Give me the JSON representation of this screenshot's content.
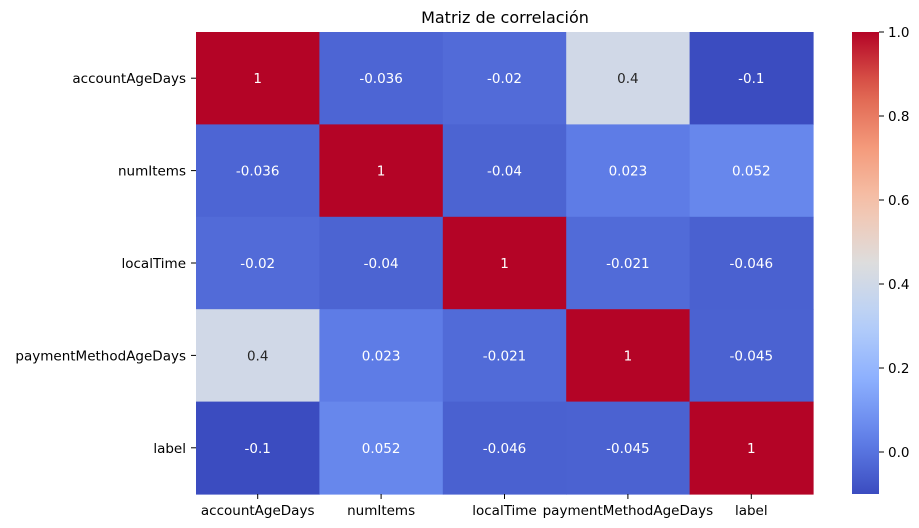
{
  "chart_data": {
    "type": "heatmap",
    "title": "Matriz de correlación",
    "row_labels": [
      "accountAgeDays",
      "numItems",
      "localTime",
      "paymentMethodAgeDays",
      "label"
    ],
    "col_labels": [
      "accountAgeDays",
      "numItems",
      "localTime",
      "paymentMethodAgeDays",
      "label"
    ],
    "values": [
      [
        1,
        -0.036,
        -0.02,
        0.4,
        -0.1
      ],
      [
        -0.036,
        1,
        -0.04,
        0.023,
        0.052
      ],
      [
        -0.02,
        -0.04,
        1,
        -0.021,
        -0.046
      ],
      [
        0.4,
        0.023,
        -0.021,
        1,
        -0.045
      ],
      [
        -0.1,
        0.052,
        -0.046,
        -0.045,
        1
      ]
    ],
    "annotations": [
      [
        "1",
        "-0.036",
        "-0.02",
        "0.4",
        "-0.1"
      ],
      [
        "-0.036",
        "1",
        "-0.04",
        "0.023",
        "0.052"
      ],
      [
        "-0.02",
        "-0.04",
        "1",
        "-0.021",
        "-0.046"
      ],
      [
        "0.4",
        "0.023",
        "-0.021",
        "1",
        "-0.045"
      ],
      [
        "-0.1",
        "0.052",
        "-0.046",
        "-0.045",
        "1"
      ]
    ],
    "colormap": "coolwarm",
    "vmin": -0.1,
    "vmax": 1.0,
    "colorbar_ticks": [
      1.0,
      0.8,
      0.6,
      0.4,
      0.2,
      0.0
    ],
    "colorbar_tick_labels": [
      "1.0",
      "0.8",
      "0.6",
      "0.4",
      "0.2",
      "0.0"
    ]
  }
}
